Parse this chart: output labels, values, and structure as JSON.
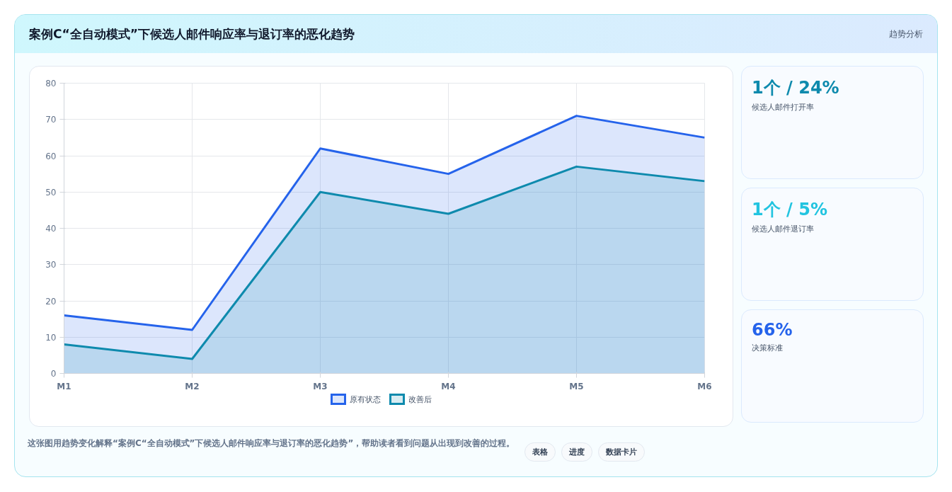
{
  "chart_data": [
    {
      "type": "area",
      "title": "案例C“全自动模式”下候选人邮件响应率与退订率的恶化趋势",
      "categories": [
        "M1",
        "M2",
        "M3",
        "M4",
        "M5",
        "M6"
      ],
      "series": [
        {
          "name": "原有状态",
          "color": "#2563eb",
          "values": [
            16,
            12,
            62,
            55,
            71,
            65
          ]
        },
        {
          "name": "改善后",
          "color": "#0e8aad",
          "values": [
            8,
            4,
            50,
            44,
            57,
            53
          ]
        }
      ],
      "ylim": [
        0,
        80
      ],
      "yticks": [
        0,
        10,
        20,
        30,
        40,
        50,
        60,
        70,
        80
      ],
      "grid": true,
      "legend": "bottom",
      "annotations": [
        "趋势分析",
        "这张图用趋势变化解释“案例C“全自动模式”下候选人邮件响应率与退订率的恶化趋势”，帮助读者看到问题从出现到改善的过程。",
        "表格",
        "进度",
        "数据卡片"
      ]
    },
    {
      "type": "other",
      "annotations": [
        "1个 / 24%",
        "候选人邮件打开率",
        "1个 / 5%",
        "候选人邮件退订率",
        "66%",
        "决策标准"
      ]
    }
  ]
}
